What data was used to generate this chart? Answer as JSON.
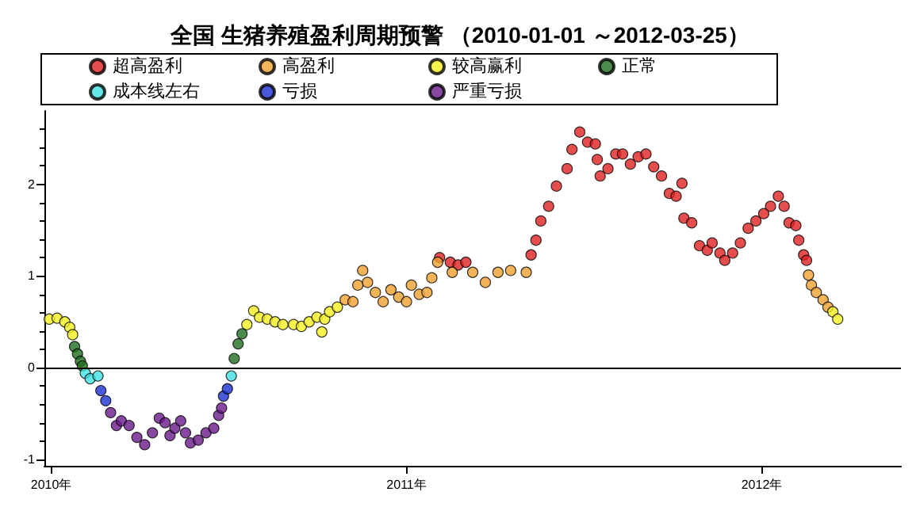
{
  "chart_data": {
    "type": "scatter",
    "title": "全国 生猪养殖盈利周期预警 （2010-01-01 ～2012-03-25）",
    "xlim": [
      "2009-12-25",
      "2012-05-23"
    ],
    "xticks": [
      {
        "value": "2010-01-01",
        "label": "2010年"
      },
      {
        "value": "2011-01-01",
        "label": "2011年"
      },
      {
        "value": "2012-01-01",
        "label": "2012年"
      }
    ],
    "ylim": [
      -1.07,
      2.8
    ],
    "yticks": [
      -1,
      0,
      1,
      2
    ],
    "legend": "top",
    "marker": "circle",
    "grid": false,
    "ref_lines": [
      {
        "axis": "y",
        "value": 0,
        "color": "#000000"
      }
    ],
    "series": [
      {
        "name": "超高盈利",
        "color": "#e02020",
        "x": [
          "2011-02-04",
          "2011-02-15",
          "2011-02-23",
          "2011-03-03",
          "2011-05-09",
          "2011-05-14",
          "2011-05-19",
          "2011-05-27",
          "2011-06-04",
          "2011-06-15",
          "2011-06-20",
          "2011-06-28",
          "2011-07-06",
          "2011-07-14",
          "2011-07-16",
          "2011-07-19",
          "2011-07-27",
          "2011-08-04",
          "2011-08-11",
          "2011-08-19",
          "2011-08-27",
          "2011-09-04",
          "2011-09-12",
          "2011-09-20",
          "2011-09-28",
          "2011-10-05",
          "2011-10-11",
          "2011-10-13",
          "2011-10-21",
          "2011-10-29",
          "2011-11-06",
          "2011-11-11",
          "2011-11-19",
          "2011-11-24",
          "2011-12-02",
          "2011-12-10",
          "2011-12-18",
          "2011-12-26",
          "2012-01-03",
          "2012-01-10",
          "2012-01-18",
          "2012-01-24",
          "2012-01-29",
          "2012-02-05",
          "2012-02-08",
          "2012-02-13",
          "2012-02-16"
        ],
        "values": [
          1.2,
          1.15,
          1.12,
          1.15,
          1.23,
          1.39,
          1.6,
          1.76,
          1.98,
          2.17,
          2.38,
          2.57,
          2.46,
          2.44,
          2.27,
          2.09,
          2.17,
          2.33,
          2.33,
          2.22,
          2.3,
          2.33,
          2.19,
          2.09,
          1.9,
          1.87,
          2.01,
          1.63,
          1.58,
          1.33,
          1.28,
          1.36,
          1.25,
          1.17,
          1.25,
          1.36,
          1.52,
          1.6,
          1.68,
          1.76,
          1.87,
          1.76,
          1.58,
          1.55,
          1.39,
          1.23,
          1.17
        ]
      },
      {
        "name": "高盈利",
        "color": "#f0a030",
        "x": [
          "2010-10-30",
          "2010-11-07",
          "2010-11-12",
          "2010-11-17",
          "2010-11-22",
          "2010-11-30",
          "2010-12-08",
          "2010-12-16",
          "2010-12-24",
          "2011-01-01",
          "2011-01-06",
          "2011-01-14",
          "2011-01-22",
          "2011-01-27",
          "2011-02-02",
          "2011-02-17",
          "2011-03-10",
          "2011-03-23",
          "2011-04-05",
          "2011-04-18",
          "2011-05-04",
          "2012-02-18",
          "2012-02-21",
          "2012-02-26",
          "2012-03-04",
          "2012-03-09"
        ],
        "values": [
          0.74,
          0.72,
          0.9,
          1.06,
          0.93,
          0.82,
          0.72,
          0.85,
          0.77,
          0.72,
          0.9,
          0.8,
          0.82,
          0.98,
          1.15,
          1.04,
          1.04,
          0.93,
          1.04,
          1.06,
          1.04,
          1.01,
          0.9,
          0.82,
          0.74,
          0.66
        ]
      },
      {
        "name": "较高赢利",
        "color": "#f8f020",
        "x": [
          "2009-12-30",
          "2010-01-07",
          "2010-01-15",
          "2010-01-20",
          "2010-01-23",
          "2010-07-21",
          "2010-07-28",
          "2010-08-03",
          "2010-08-11",
          "2010-08-19",
          "2010-08-27",
          "2010-09-07",
          "2010-09-15",
          "2010-09-23",
          "2010-10-01",
          "2010-10-06",
          "2010-10-09",
          "2010-10-14",
          "2010-10-22",
          "2012-03-14",
          "2012-03-19"
        ],
        "values": [
          0.53,
          0.54,
          0.5,
          0.44,
          0.36,
          0.47,
          0.62,
          0.55,
          0.53,
          0.5,
          0.47,
          0.47,
          0.45,
          0.5,
          0.55,
          0.39,
          0.53,
          0.61,
          0.66,
          0.61,
          0.53
        ]
      },
      {
        "name": "正常",
        "color": "#1e6e1e",
        "x": [
          "2010-01-25",
          "2010-01-28",
          "2010-01-31",
          "2010-02-02",
          "2010-07-08",
          "2010-07-12",
          "2010-07-16"
        ],
        "values": [
          0.23,
          0.15,
          0.07,
          0.02,
          0.1,
          0.26,
          0.37
        ]
      },
      {
        "name": "成本线左右",
        "color": "#40e0e0",
        "x": [
          "2010-02-05",
          "2010-02-10",
          "2010-02-18",
          "2010-07-05"
        ],
        "values": [
          -0.06,
          -0.12,
          -0.09,
          -0.09
        ]
      },
      {
        "name": "亏损",
        "color": "#1a30d0",
        "x": [
          "2010-02-21",
          "2010-02-26",
          "2010-06-27",
          "2010-07-01"
        ],
        "values": [
          -0.25,
          -0.36,
          -0.31,
          -0.23
        ]
      },
      {
        "name": "严重亏损",
        "color": "#6a1a8a",
        "x": [
          "2010-03-03",
          "2010-03-09",
          "2010-03-14",
          "2010-03-22",
          "2010-03-30",
          "2010-04-07",
          "2010-04-15",
          "2010-04-22",
          "2010-04-28",
          "2010-05-03",
          "2010-05-08",
          "2010-05-14",
          "2010-05-19",
          "2010-05-24",
          "2010-06-01",
          "2010-06-09",
          "2010-06-17",
          "2010-06-22",
          "2010-06-25"
        ],
        "values": [
          -0.49,
          -0.63,
          -0.58,
          -0.63,
          -0.76,
          -0.84,
          -0.71,
          -0.55,
          -0.6,
          -0.74,
          -0.66,
          -0.58,
          -0.71,
          -0.82,
          -0.79,
          -0.71,
          -0.66,
          -0.52,
          -0.44
        ]
      }
    ]
  }
}
